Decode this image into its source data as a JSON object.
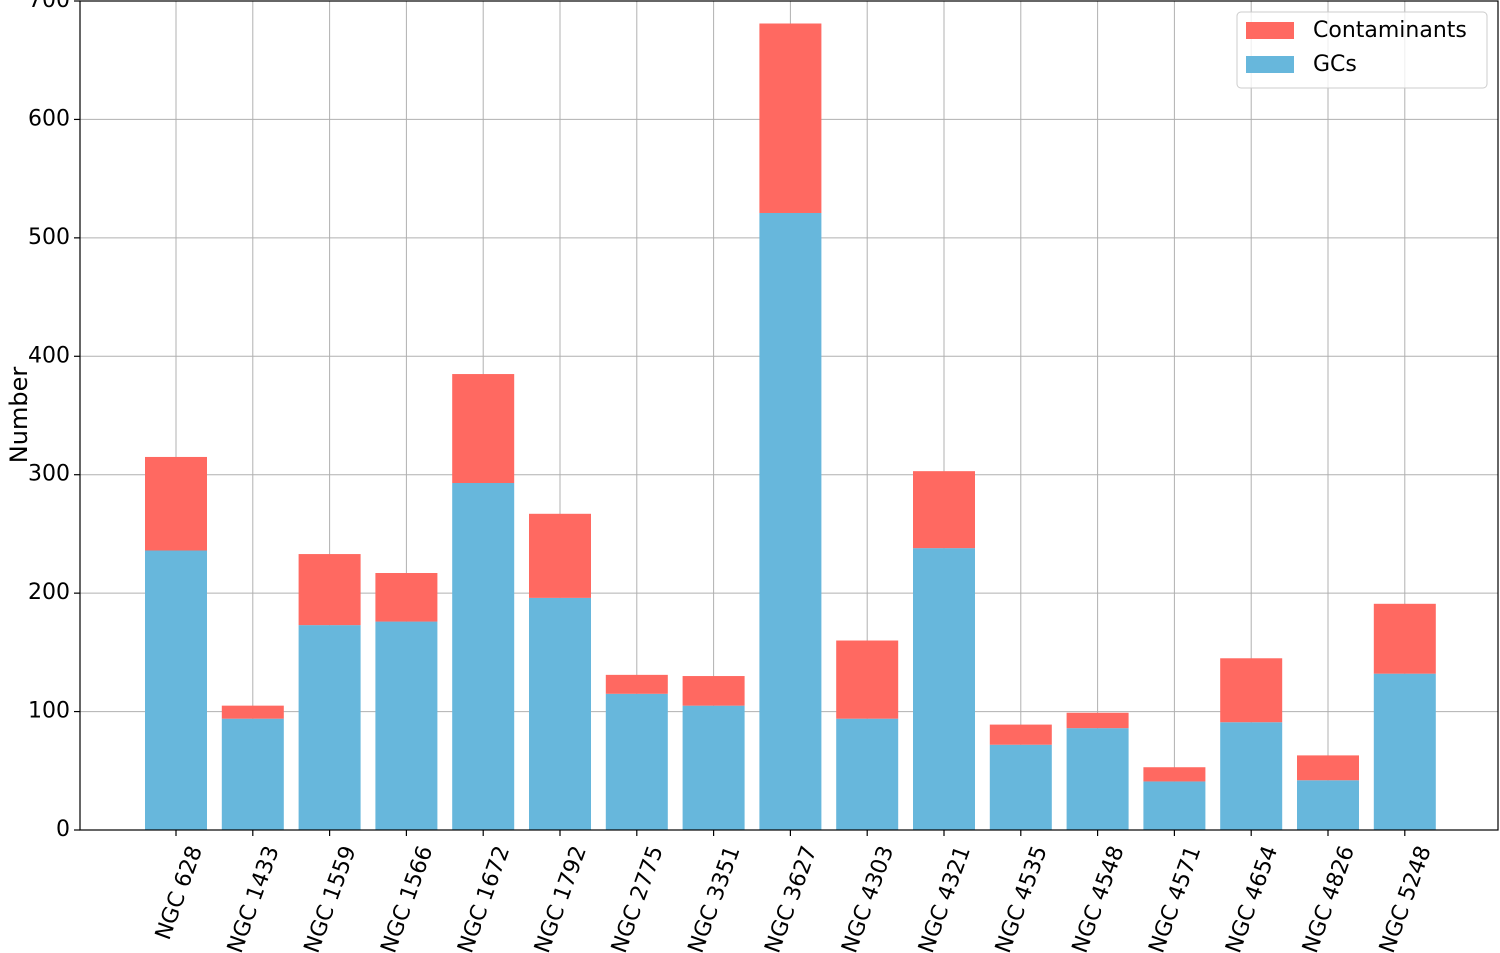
{
  "chart_data": {
    "type": "bar",
    "stacked": true,
    "categories": [
      "NGC 628",
      "NGC 1433",
      "NGC 1559",
      "NGC 1566",
      "NGC 1672",
      "NGC 1792",
      "NGC 2775",
      "NGC 3351",
      "NGC 3627",
      "NGC 4303",
      "NGC 4321",
      "NGC 4535",
      "NGC 4548",
      "NGC 4571",
      "NGC 4654",
      "NGC 4826",
      "NGC 5248"
    ],
    "series": [
      {
        "name": "GCs",
        "color": "#67b7dc",
        "values": [
          236,
          94,
          173,
          176,
          293,
          196,
          115,
          105,
          521,
          94,
          238,
          72,
          86,
          41,
          91,
          42,
          132
        ]
      },
      {
        "name": "Contaminants",
        "color": "#ff6961",
        "values": [
          79,
          11,
          60,
          41,
          92,
          71,
          16,
          25,
          160,
          66,
          65,
          17,
          13,
          12,
          54,
          21,
          59
        ]
      }
    ],
    "xlabel": "",
    "ylabel": "Number",
    "ylim": [
      0,
      700
    ],
    "yticks": [
      0,
      100,
      200,
      300,
      400,
      500,
      600,
      700
    ],
    "grid": true,
    "legend": {
      "position": "top-right",
      "order": [
        "Contaminants",
        "GCs"
      ]
    },
    "xtick_rotation": -70
  }
}
